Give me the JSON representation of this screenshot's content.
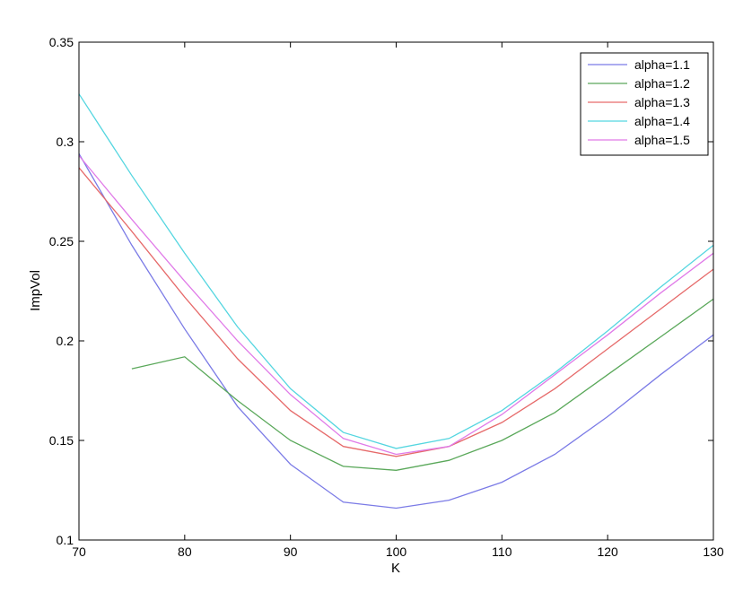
{
  "chart_data": {
    "type": "line",
    "title": "",
    "xlabel": "K",
    "ylabel": "ImpVol",
    "xlim": [
      70,
      130
    ],
    "ylim": [
      0.1,
      0.35
    ],
    "xticks": [
      "70",
      "80",
      "90",
      "100",
      "110",
      "120",
      "130"
    ],
    "yticks": [
      "0.1",
      "0.15",
      "0.2",
      "0.25",
      "0.3",
      "0.35"
    ],
    "grid": false,
    "legend_position": "top-right",
    "series": [
      {
        "name": "alpha=1.1",
        "color": "#7b7be6",
        "x": [
          70,
          75,
          80,
          85,
          90,
          95,
          100,
          105,
          110,
          115,
          120,
          125,
          130
        ],
        "y": [
          0.294,
          0.248,
          0.206,
          0.167,
          0.138,
          0.119,
          0.116,
          0.12,
          0.129,
          0.143,
          0.162,
          0.183,
          0.203
        ]
      },
      {
        "name": "alpha=1.2",
        "color": "#5aa85a",
        "x": [
          75,
          80,
          85,
          90,
          95,
          100,
          105,
          110,
          115,
          120,
          125,
          130
        ],
        "y": [
          0.186,
          0.192,
          0.17,
          0.15,
          0.137,
          0.135,
          0.14,
          0.15,
          0.164,
          0.183,
          0.202,
          0.221
        ]
      },
      {
        "name": "alpha=1.3",
        "color": "#e66a6a",
        "x": [
          70,
          75,
          80,
          85,
          90,
          95,
          100,
          105,
          110,
          115,
          120,
          125,
          130
        ],
        "y": [
          0.287,
          0.255,
          0.222,
          0.191,
          0.165,
          0.147,
          0.142,
          0.147,
          0.159,
          0.176,
          0.196,
          0.216,
          0.236
        ]
      },
      {
        "name": "alpha=1.4",
        "color": "#55d6e0",
        "x": [
          70,
          75,
          80,
          85,
          90,
          95,
          100,
          105,
          110,
          115,
          120,
          125,
          130
        ],
        "y": [
          0.324,
          0.283,
          0.244,
          0.207,
          0.176,
          0.154,
          0.146,
          0.151,
          0.165,
          0.184,
          0.205,
          0.227,
          0.248
        ]
      },
      {
        "name": "alpha=1.5",
        "color": "#e07ae8",
        "x": [
          70,
          75,
          80,
          85,
          90,
          95,
          100,
          105,
          110,
          115,
          120,
          125,
          130
        ],
        "y": [
          0.293,
          0.261,
          0.23,
          0.2,
          0.173,
          0.151,
          0.143,
          0.147,
          0.163,
          0.183,
          0.203,
          0.224,
          0.244
        ]
      }
    ]
  }
}
